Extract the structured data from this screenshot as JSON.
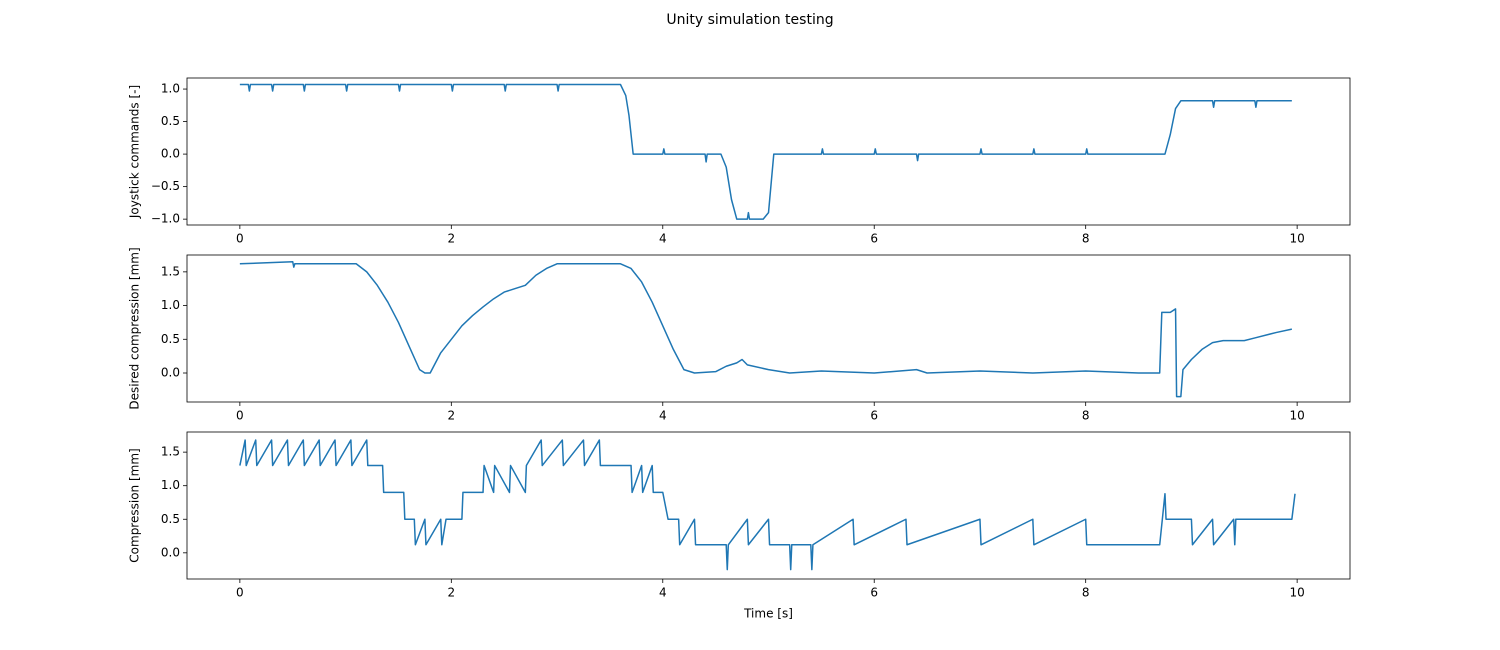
{
  "title": "Unity simulation testing",
  "chart_data": [
    {
      "type": "line",
      "ylabel": "Joystick commands [-]",
      "color": "#1f77b4",
      "xlim": [
        -0.5,
        10.5
      ],
      "xticks": [
        0,
        2,
        4,
        6,
        8,
        10
      ],
      "ylim": [
        -1.09,
        1.17
      ],
      "yticks": [
        {
          "value": -1,
          "label": "−1.0"
        },
        {
          "value": -0.5,
          "label": "−0.5"
        },
        {
          "value": 0,
          "label": "0.0"
        },
        {
          "value": 0.5,
          "label": "0.5"
        },
        {
          "value": 1,
          "label": "1.0"
        }
      ],
      "x": [
        0,
        0.08,
        0.09,
        0.1,
        0.3,
        0.31,
        0.32,
        0.6,
        0.61,
        0.62,
        1.0,
        1.01,
        1.02,
        1.5,
        1.51,
        1.52,
        2.0,
        2.01,
        2.02,
        2.5,
        2.51,
        2.52,
        3.0,
        3.01,
        3.02,
        3.6,
        3.65,
        3.68,
        3.72,
        4.0,
        4.01,
        4.02,
        4.4,
        4.41,
        4.42,
        4.55,
        4.6,
        4.65,
        4.7,
        4.8,
        4.81,
        4.82,
        4.95,
        5.0,
        5.05,
        5.5,
        5.51,
        5.52,
        6.0,
        6.01,
        6.02,
        6.4,
        6.41,
        6.42,
        7.0,
        7.01,
        7.02,
        7.5,
        7.51,
        7.52,
        8.0,
        8.01,
        8.02,
        8.75,
        8.8,
        8.85,
        8.9,
        9.2,
        9.21,
        9.22,
        9.6,
        9.61,
        9.62,
        9.95
      ],
      "values": [
        1.07,
        1.07,
        0.97,
        1.07,
        1.07,
        0.97,
        1.07,
        1.07,
        0.97,
        1.07,
        1.07,
        0.97,
        1.07,
        1.07,
        0.97,
        1.07,
        1.07,
        0.97,
        1.07,
        1.07,
        0.97,
        1.07,
        1.07,
        0.97,
        1.07,
        1.07,
        0.9,
        0.6,
        0,
        0,
        0.08,
        0,
        0,
        -0.12,
        0,
        0,
        -0.2,
        -0.7,
        -1.0,
        -1.0,
        -0.9,
        -1.0,
        -1.0,
        -0.9,
        0,
        0,
        0.08,
        0,
        0,
        0.08,
        0,
        0,
        -0.1,
        0,
        0,
        0.08,
        0,
        0,
        0.08,
        0,
        0,
        0.08,
        0,
        0,
        0.3,
        0.7,
        0.82,
        0.82,
        0.72,
        0.82,
        0.82,
        0.72,
        0.82,
        0.82
      ]
    },
    {
      "type": "line",
      "ylabel": "Desired compression [mm]",
      "color": "#1f77b4",
      "xlim": [
        -0.5,
        10.5
      ],
      "xticks": [
        0,
        2,
        4,
        6,
        8,
        10
      ],
      "ylim": [
        -0.43,
        1.75
      ],
      "yticks": [
        {
          "value": 0,
          "label": "0.0"
        },
        0.5,
        {
          "value": 1,
          "label": "1.0"
        },
        1.5
      ],
      "x": [
        0,
        0.5,
        0.51,
        0.52,
        1.1,
        1.2,
        1.3,
        1.4,
        1.5,
        1.6,
        1.7,
        1.75,
        1.8,
        1.85,
        1.9,
        2.0,
        2.1,
        2.2,
        2.3,
        2.4,
        2.5,
        2.6,
        2.7,
        2.8,
        2.9,
        3.0,
        3.6,
        3.7,
        3.8,
        3.9,
        4.0,
        4.1,
        4.2,
        4.3,
        4.5,
        4.6,
        4.7,
        4.75,
        4.8,
        5.0,
        5.2,
        5.5,
        6.0,
        6.4,
        6.5,
        7.0,
        7.5,
        8.0,
        8.5,
        8.7,
        8.72,
        8.8,
        8.85,
        8.86,
        8.9,
        8.92,
        9.0,
        9.1,
        9.2,
        9.3,
        9.5,
        9.6,
        9.8,
        9.95
      ],
      "values": [
        1.62,
        1.65,
        1.57,
        1.62,
        1.62,
        1.5,
        1.3,
        1.05,
        0.75,
        0.4,
        0.05,
        0,
        0,
        0.15,
        0.3,
        0.5,
        0.7,
        0.85,
        0.98,
        1.1,
        1.2,
        1.25,
        1.3,
        1.45,
        1.55,
        1.62,
        1.62,
        1.55,
        1.35,
        1.05,
        0.7,
        0.35,
        0.05,
        0,
        0.02,
        0.1,
        0.15,
        0.2,
        0.12,
        0.05,
        0,
        0.03,
        0,
        0.05,
        0,
        0.03,
        0,
        0.03,
        0,
        0,
        0.9,
        0.9,
        0.95,
        -0.35,
        -0.35,
        0.05,
        0.2,
        0.35,
        0.45,
        0.48,
        0.48,
        0.52,
        0.6,
        0.65
      ]
    },
    {
      "type": "line",
      "ylabel": "Compression [mm]",
      "xlabel": "Time [s]",
      "color": "#1f77b4",
      "xlim": [
        -0.5,
        10.5
      ],
      "xticks": [
        0,
        2,
        4,
        6,
        8,
        10
      ],
      "ylim": [
        -0.39,
        1.8
      ],
      "yticks": [
        {
          "value": 0,
          "label": "0.0"
        },
        0.5,
        {
          "value": 1,
          "label": "1.0"
        },
        1.5
      ],
      "x": [
        0,
        0.05,
        0.06,
        0.15,
        0.16,
        0.3,
        0.31,
        0.45,
        0.46,
        0.6,
        0.61,
        0.75,
        0.76,
        0.9,
        0.91,
        1.05,
        1.06,
        1.2,
        1.21,
        1.35,
        1.36,
        1.55,
        1.56,
        1.65,
        1.66,
        1.75,
        1.76,
        1.9,
        1.91,
        1.95,
        2.1,
        2.11,
        2.3,
        2.31,
        2.4,
        2.41,
        2.55,
        2.56,
        2.7,
        2.71,
        2.85,
        2.86,
        3.05,
        3.06,
        3.25,
        3.26,
        3.4,
        3.41,
        3.7,
        3.71,
        3.8,
        3.81,
        3.9,
        3.91,
        4.0,
        4.05,
        4.15,
        4.16,
        4.3,
        4.31,
        4.6,
        4.61,
        4.62,
        4.8,
        4.81,
        5.0,
        5.01,
        5.2,
        5.21,
        5.22,
        5.4,
        5.41,
        5.42,
        5.8,
        5.81,
        6.3,
        6.31,
        7.0,
        7.01,
        7.5,
        7.51,
        8.0,
        8.01,
        8.7,
        8.75,
        8.76,
        9.0,
        9.01,
        9.2,
        9.21,
        9.4,
        9.41,
        9.42,
        9.95,
        9.98
      ],
      "values": [
        1.3,
        1.68,
        1.3,
        1.68,
        1.3,
        1.68,
        1.3,
        1.68,
        1.3,
        1.68,
        1.3,
        1.68,
        1.3,
        1.68,
        1.3,
        1.68,
        1.3,
        1.68,
        1.3,
        1.3,
        0.9,
        0.9,
        0.5,
        0.5,
        0.12,
        0.5,
        0.12,
        0.5,
        0.12,
        0.5,
        0.5,
        0.9,
        0.9,
        1.3,
        0.9,
        1.3,
        0.9,
        1.3,
        0.9,
        1.3,
        1.68,
        1.3,
        1.68,
        1.3,
        1.68,
        1.3,
        1.68,
        1.3,
        1.3,
        0.9,
        1.3,
        0.9,
        1.3,
        0.9,
        0.9,
        0.5,
        0.5,
        0.12,
        0.5,
        0.12,
        0.12,
        -0.25,
        0.12,
        0.5,
        0.12,
        0.5,
        0.12,
        0.12,
        -0.25,
        0.12,
        0.12,
        -0.25,
        0.12,
        0.5,
        0.12,
        0.5,
        0.12,
        0.5,
        0.12,
        0.5,
        0.12,
        0.5,
        0.12,
        0.12,
        0.88,
        0.5,
        0.5,
        0.12,
        0.5,
        0.12,
        0.5,
        0.12,
        0.5,
        0.5,
        0.88
      ]
    }
  ]
}
